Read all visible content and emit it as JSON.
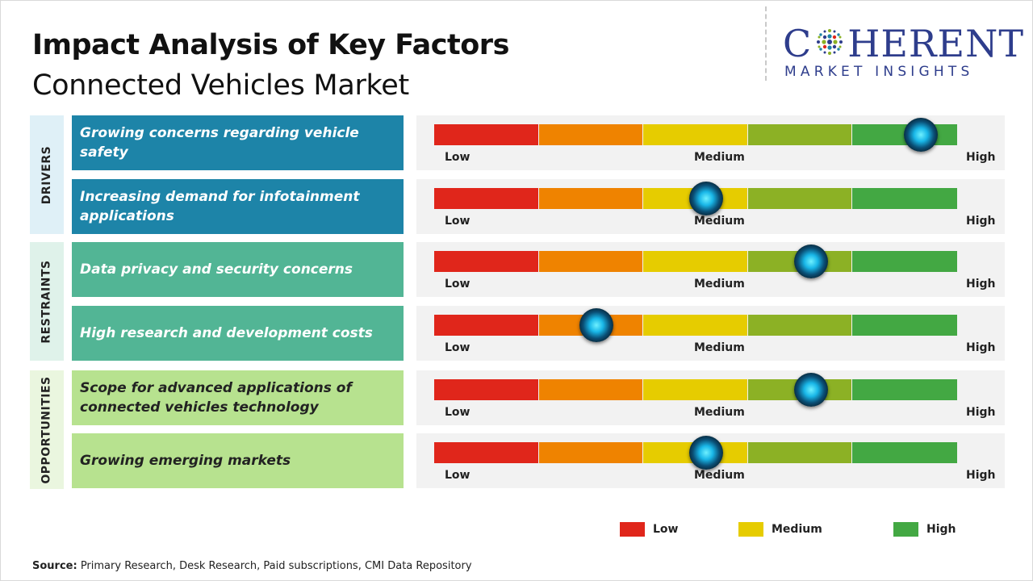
{
  "header": {
    "title": "Impact Analysis of Key Factors",
    "subtitle": "Connected Vehicles Market"
  },
  "logo": {
    "brand_before": "C",
    "brand_after": "HERENT",
    "tagline": "MARKET INSIGHTS"
  },
  "colors": {
    "drivers": "#1d84a8",
    "drivers_label_bg": "#dff0f7",
    "restraints": "#52b595",
    "restraints_label_bg": "#dff2ea",
    "opportunities": "#b7e28f",
    "opportunities_label_bg": "#eaf6df",
    "meter_segments": [
      "#e0261b",
      "#ef8300",
      "#e6cc00",
      "#8cb125",
      "#43a843"
    ],
    "legend_low": "#e0261b",
    "legend_medium": "#e6cc00",
    "legend_high": "#43a843"
  },
  "sections": [
    {
      "label": "DRIVERS",
      "factors": [
        {
          "text": "Growing concerns regarding vehicle safety",
          "impact": 0.93
        },
        {
          "text": "Increasing demand for infotainment applications",
          "impact": 0.52
        }
      ]
    },
    {
      "label": "RESTRAINTS",
      "factors": [
        {
          "text": "Data privacy and security concerns",
          "impact": 0.72
        },
        {
          "text": "High research and development costs",
          "impact": 0.31
        }
      ]
    },
    {
      "label": "OPPORTUNITIES",
      "factors": [
        {
          "text": "Scope for advanced applications of connected vehicles technology",
          "impact": 0.72
        },
        {
          "text": "Growing emerging markets",
          "impact": 0.52
        }
      ]
    }
  ],
  "meter_labels": {
    "low": "Low",
    "medium": "Medium",
    "high": "High"
  },
  "legend": [
    {
      "label": "Low",
      "color": "#e0261b"
    },
    {
      "label": "Medium",
      "color": "#e6cc00"
    },
    {
      "label": "High",
      "color": "#43a843"
    }
  ],
  "source": {
    "prefix": "Source:",
    "text": " Primary Research, Desk Research, Paid subscriptions, CMI Data Repository"
  }
}
